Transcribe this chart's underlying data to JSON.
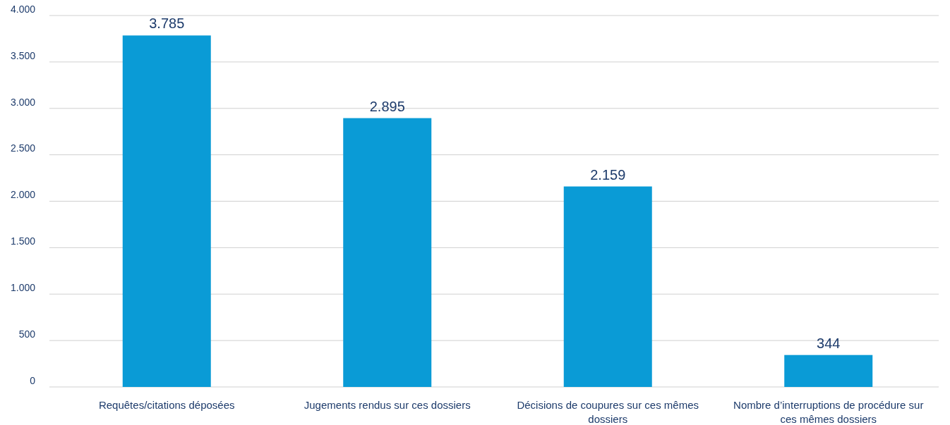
{
  "chart_data": {
    "type": "bar",
    "categories": [
      "Requêtes/citations déposées",
      "Jugements rendus sur ces dossiers",
      "Décisions de coupures sur ces mêmes dossiers",
      "Nombre d’interruptions de procédure sur ces mêmes dossiers"
    ],
    "values": [
      3785,
      2895,
      2159,
      344
    ],
    "color": "#0a9bd6",
    "value_labels": [
      "3.785",
      "2.895",
      "2.159",
      "344"
    ],
    "ylim": [
      0,
      4000
    ],
    "yticks": [
      {
        "value": 0,
        "label": "0"
      },
      {
        "value": 500,
        "label": "500"
      },
      {
        "value": 1000,
        "label": "1.000"
      },
      {
        "value": 1500,
        "label": "1.500"
      },
      {
        "value": 2000,
        "label": "2.000"
      },
      {
        "value": 2500,
        "label": "2.500"
      },
      {
        "value": 3000,
        "label": "3.000"
      },
      {
        "value": 3500,
        "label": "3.500"
      },
      {
        "value": 4000,
        "label": "4.000"
      }
    ],
    "grid": "y"
  }
}
